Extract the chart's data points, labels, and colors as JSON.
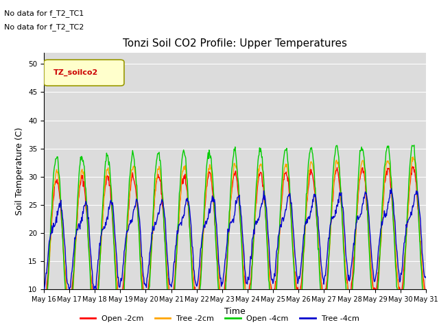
{
  "title": "Tonzi Soil CO2 Profile: Upper Temperatures",
  "xlabel": "Time",
  "ylabel": "Soil Temperature (C)",
  "ylim": [
    10,
    52
  ],
  "yticks": [
    10,
    15,
    20,
    25,
    30,
    35,
    40,
    45,
    50
  ],
  "annotation1": "No data for f_T2_TC1",
  "annotation2": "No data for f_T2_TC2",
  "legend_label": "TZ_soilco2",
  "legend_entries": [
    "Open -2cm",
    "Tree -2cm",
    "Open -4cm",
    "Tree -4cm"
  ],
  "legend_colors": [
    "#ff0000",
    "#ffa500",
    "#00cc00",
    "#0000cd"
  ],
  "series_colors": {
    "open2": "#ff0000",
    "tree2": "#ffa500",
    "open4": "#00cc00",
    "tree4": "#0000cd"
  },
  "bg_color": "#dcdcdc",
  "grid_color": "#ffffff",
  "title_fontsize": 11,
  "axis_fontsize": 9,
  "tick_fontsize": 7.5,
  "linewidth": 1.0
}
